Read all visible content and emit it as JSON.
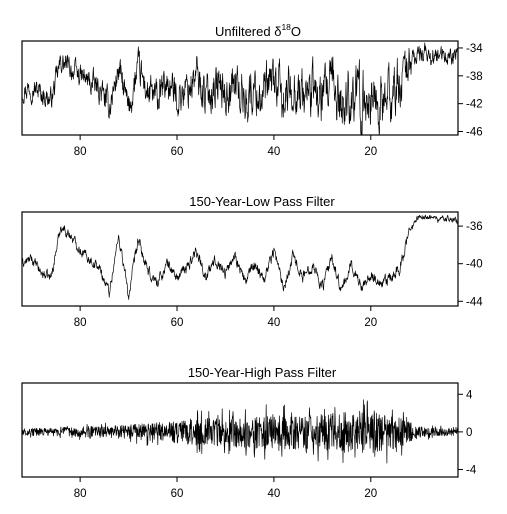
{
  "chart_data": [
    {
      "type": "line",
      "title": "Unfiltered δ18O",
      "title_main": "Unfiltered δ",
      "title_sup": "18",
      "title_tail": "O",
      "xlabel": "",
      "ylabel": "",
      "xlim": [
        92,
        2
      ],
      "ylim": [
        -46.5,
        -33
      ],
      "x_ticks": [
        80,
        60,
        40,
        20
      ],
      "x_tick_labels": [
        "80",
        "60",
        "40",
        "20"
      ],
      "y_ticks": [
        -34,
        -38,
        -42,
        -46
      ],
      "y_tick_labels": [
        "-34",
        "-38",
        "-42",
        "-46"
      ],
      "grid": false,
      "legend": "none",
      "line_color": "#000000",
      "series": [
        {
          "x": [
            92,
            90,
            88,
            86,
            84,
            82,
            80,
            78,
            76,
            74,
            72,
            70,
            68,
            66,
            64,
            62,
            60,
            58,
            56,
            54,
            52,
            50,
            48,
            46,
            44,
            42,
            40,
            38,
            36,
            34,
            32,
            30,
            28,
            26,
            24,
            22,
            20,
            18,
            16,
            14,
            12,
            10,
            8,
            6,
            4,
            2
          ],
          "y": [
            -40,
            -39.5,
            -40.5,
            -41.5,
            -36,
            -37,
            -38,
            -39,
            -40,
            -42.5,
            -37,
            -43,
            -37,
            -40.5,
            -41.5,
            -39,
            -41,
            -40,
            -38,
            -41,
            -39,
            -40.5,
            -39,
            -41.5,
            -40,
            -41,
            -38.5,
            -42,
            -39,
            -41,
            -40,
            -42,
            -39.5,
            -42.5,
            -40,
            -42,
            -40.5,
            -42.5,
            -41,
            -39,
            -36,
            -35,
            -35,
            -35.5,
            -35,
            -35.5
          ],
          "noise": [
            1.5,
            1.5,
            1.5,
            1.5,
            1.5,
            1.5,
            1.5,
            1.8,
            1.8,
            2,
            2,
            2.2,
            2.2,
            2.4,
            2.5,
            2.5,
            2.5,
            2.6,
            2.8,
            2.8,
            3,
            3,
            3,
            3.2,
            3.2,
            3.4,
            3.4,
            3.5,
            3.5,
            3.6,
            3.6,
            3.8,
            3.8,
            4,
            4,
            4,
            4,
            4,
            3.8,
            3.5,
            2.5,
            1.4,
            1.2,
            1.2,
            1.2,
            1.2
          ]
        }
      ]
    },
    {
      "type": "line",
      "title": "150-Year-Low Pass Filter",
      "xlabel": "",
      "ylabel": "",
      "xlim": [
        92,
        2
      ],
      "ylim": [
        -44.5,
        -34.5
      ],
      "x_ticks": [
        80,
        60,
        40,
        20
      ],
      "x_tick_labels": [
        "80",
        "60",
        "40",
        "20"
      ],
      "y_ticks": [
        -36,
        -40,
        -44
      ],
      "y_tick_labels": [
        "-36",
        "-40",
        "-44"
      ],
      "grid": false,
      "legend": "none",
      "line_color": "#000000",
      "series": [
        {
          "x": [
            92,
            90,
            88,
            86,
            84,
            82,
            80,
            78,
            76,
            74,
            72,
            70,
            68,
            66,
            64,
            62,
            60,
            58,
            56,
            54,
            52,
            50,
            48,
            46,
            44,
            42,
            40,
            38,
            36,
            34,
            32,
            30,
            28,
            26,
            24,
            22,
            20,
            18,
            16,
            14,
            12,
            10,
            8,
            6,
            4,
            2
          ],
          "y": [
            -40,
            -39.5,
            -41,
            -41.5,
            -36,
            -37,
            -38.5,
            -39.5,
            -40.5,
            -43,
            -37,
            -43.5,
            -37.5,
            -41,
            -42,
            -40,
            -41.5,
            -40.5,
            -38.5,
            -41.5,
            -39.5,
            -41,
            -39,
            -42,
            -40,
            -41.5,
            -38.5,
            -42.5,
            -39,
            -41.5,
            -40,
            -42.5,
            -39.5,
            -43,
            -40,
            -42.5,
            -41,
            -42.5,
            -41.5,
            -40.5,
            -36.5,
            -35,
            -35,
            -35.3,
            -35.2,
            -35.5
          ],
          "noise": [
            0.5,
            0.5,
            0.5,
            0.5,
            0.5,
            0.5,
            0.5,
            0.5,
            0.5,
            0.6,
            0.6,
            0.6,
            0.6,
            0.6,
            0.6,
            0.6,
            0.6,
            0.6,
            0.6,
            0.6,
            0.6,
            0.6,
            0.6,
            0.6,
            0.6,
            0.6,
            0.6,
            0.6,
            0.6,
            0.6,
            0.6,
            0.6,
            0.6,
            0.6,
            0.6,
            0.6,
            0.6,
            0.6,
            0.6,
            0.6,
            0.5,
            0.3,
            0.3,
            0.3,
            0.3,
            0.3
          ]
        }
      ]
    },
    {
      "type": "line",
      "title": "150-Year-High Pass Filter",
      "xlabel": "",
      "ylabel": "",
      "xlim": [
        92,
        2
      ],
      "ylim": [
        -4.8,
        5.2
      ],
      "x_ticks": [
        80,
        60,
        40,
        20
      ],
      "x_tick_labels": [
        "80",
        "60",
        "40",
        "20"
      ],
      "y_ticks": [
        4,
        0,
        -4
      ],
      "y_tick_labels": [
        "4",
        "0",
        "-4"
      ],
      "grid": false,
      "legend": "none",
      "line_color": "#000000",
      "series": [
        {
          "x": [
            92,
            90,
            88,
            86,
            84,
            82,
            80,
            78,
            76,
            74,
            72,
            70,
            68,
            66,
            64,
            62,
            60,
            58,
            56,
            54,
            52,
            50,
            48,
            46,
            44,
            42,
            40,
            38,
            36,
            34,
            32,
            30,
            28,
            26,
            24,
            22,
            20,
            18,
            16,
            14,
            12,
            10,
            8,
            6,
            4,
            2
          ],
          "y": [
            0,
            0,
            0,
            0,
            0,
            0,
            0,
            0,
            0,
            0,
            0,
            0,
            0,
            0,
            0,
            0,
            0,
            0,
            0,
            0,
            0,
            0,
            0,
            0,
            0,
            0,
            0,
            0,
            0,
            0,
            0,
            0,
            0,
            0,
            0,
            0,
            0,
            0,
            0,
            0,
            0,
            0,
            0,
            0,
            0,
            0
          ],
          "noise": [
            0.6,
            0.6,
            0.7,
            0.7,
            0.8,
            0.8,
            0.9,
            1,
            1,
            1.1,
            1.2,
            1.3,
            1.4,
            1.6,
            1.7,
            1.8,
            2,
            2.1,
            2.3,
            2.4,
            2.5,
            2.6,
            2.7,
            2.8,
            2.9,
            3,
            3,
            3.1,
            3.1,
            3.2,
            3.2,
            3.3,
            3.3,
            3.5,
            3.6,
            3.8,
            3.8,
            3.6,
            3.2,
            2.8,
            1.8,
            1,
            0.8,
            0.7,
            0.7,
            0.6
          ]
        }
      ]
    }
  ]
}
